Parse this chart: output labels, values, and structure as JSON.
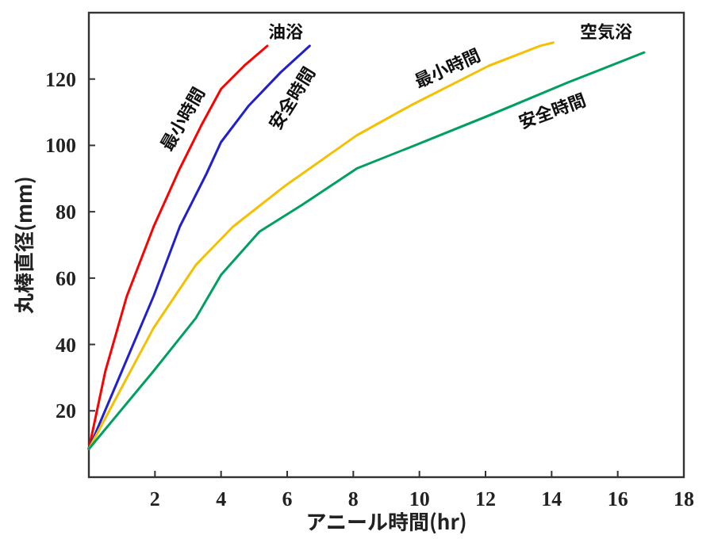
{
  "chart_data": {
    "type": "line",
    "xlabel": "アニール時間(hr)",
    "ylabel": "丸棒直径(mm)",
    "xlim": [
      0,
      18
    ],
    "ylim": [
      0,
      140
    ],
    "xticks": [
      2,
      4,
      6,
      8,
      10,
      12,
      14,
      16,
      18
    ],
    "yticks": [
      20,
      40,
      60,
      80,
      100,
      120
    ],
    "grid": false,
    "marker": "none",
    "line_style": "solid",
    "series": [
      {
        "color": "#ff0000",
        "x": [
          0,
          0.5,
          1.15,
          1.96,
          2.75,
          3.4,
          4.0,
          4.7,
          5.4
        ],
        "values": [
          8.5,
          32,
          54.6,
          75.5,
          93,
          106,
          117,
          124,
          130
        ]
      },
      {
        "color": "#2020d0",
        "x": [
          0,
          1.0,
          1.96,
          2.75,
          3.56,
          4.0,
          4.84,
          5.8,
          6.68
        ],
        "values": [
          8.5,
          32,
          54.6,
          75.5,
          91.5,
          101,
          112,
          122,
          130
        ]
      },
      {
        "color": "#f5c000",
        "x": [
          0,
          1.96,
          3.24,
          4.36,
          5.96,
          8.1,
          9.73,
          12.1,
          13.65,
          14.05
        ],
        "values": [
          8.5,
          45,
          64,
          75.5,
          88,
          103,
          112,
          124,
          130,
          131
        ]
      },
      {
        "color": "#00a060",
        "x": [
          0,
          1.96,
          3.24,
          4.0,
          5.16,
          6.44,
          8.1,
          9.73,
          12.1,
          14.5,
          16.8
        ],
        "values": [
          8.5,
          32,
          48,
          61,
          74,
          82,
          93,
          99.5,
          109,
          119,
          128
        ]
      }
    ],
    "annotations": [
      "油浴",
      "最小時間",
      "安全時間",
      "最小時間",
      "安全時間",
      "空気浴"
    ]
  }
}
